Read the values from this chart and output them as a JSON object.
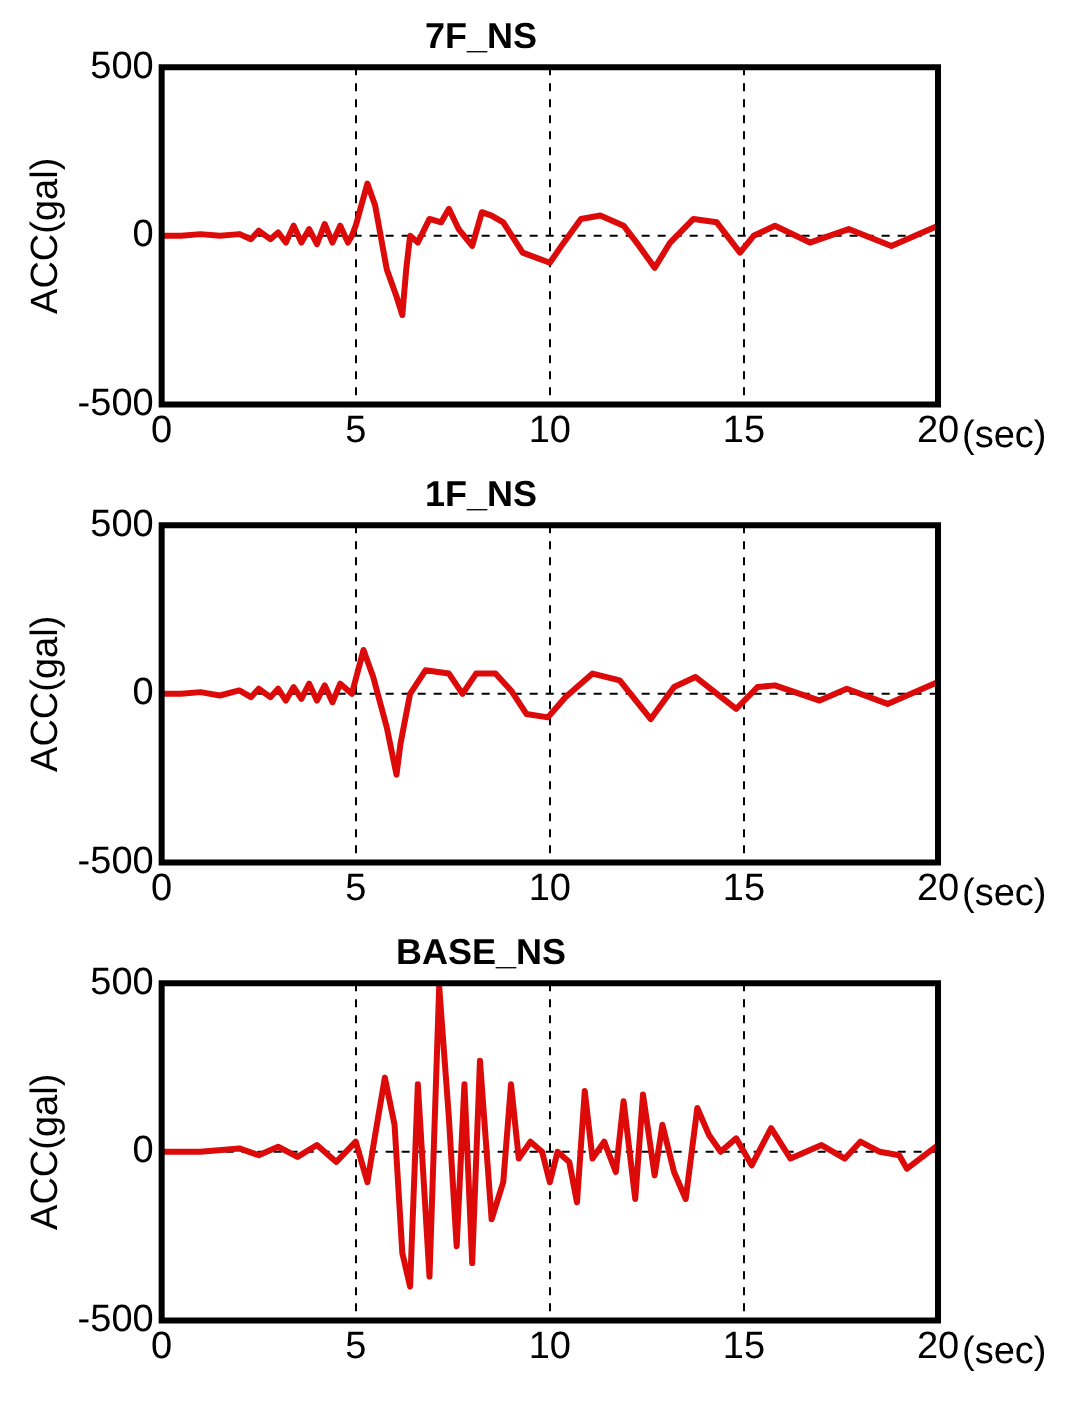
{
  "chart_data": [
    {
      "type": "line",
      "title": "7F_NS",
      "xlabel": "(sec)",
      "ylabel": "ACC(gal)",
      "color": "#dd0a0a",
      "xlim": [
        0,
        20
      ],
      "ylim": [
        -500,
        500
      ],
      "xticks": [
        0,
        5,
        10,
        15,
        20
      ],
      "yticks": [
        -500,
        0,
        500
      ],
      "grid": "x",
      "ref_lines": [
        {
          "axis": "y",
          "value": 0,
          "line_style": "dashed"
        }
      ],
      "x": [
        0,
        0.5,
        1,
        1.5,
        2,
        2.3,
        2.5,
        2.8,
        3,
        3.2,
        3.4,
        3.6,
        3.8,
        4,
        4.2,
        4.4,
        4.6,
        4.8,
        4.9,
        5,
        5.3,
        5.5,
        5.8,
        6.05,
        6.2,
        6.3,
        6.4,
        6.6,
        6.9,
        7.2,
        7.4,
        7.65,
        8,
        8.25,
        8.5,
        8.8,
        9.3,
        10,
        10.3,
        10.8,
        11.3,
        11.9,
        12.3,
        12.7,
        13.1,
        13.7,
        14.3,
        14.9,
        15.25,
        15.8,
        16.7,
        17.7,
        18.8,
        20
      ],
      "values": [
        0,
        0,
        5,
        0,
        5,
        -10,
        15,
        -10,
        10,
        -20,
        30,
        -20,
        20,
        -25,
        35,
        -20,
        30,
        -20,
        0,
        30,
        155,
        90,
        -100,
        -180,
        -235,
        -100,
        0,
        -20,
        50,
        40,
        80,
        20,
        -30,
        70,
        60,
        40,
        -50,
        -80,
        -30,
        50,
        60,
        30,
        -30,
        -95,
        -20,
        50,
        40,
        -50,
        0,
        30,
        -20,
        20,
        -30,
        30
      ]
    },
    {
      "type": "line",
      "title": "1F_NS",
      "xlabel": "(sec)",
      "ylabel": "ACC(gal)",
      "color": "#dd0a0a",
      "xlim": [
        0,
        20
      ],
      "ylim": [
        -500,
        500
      ],
      "xticks": [
        0,
        5,
        10,
        15,
        20
      ],
      "yticks": [
        -500,
        0,
        500
      ],
      "grid": "x",
      "ref_lines": [
        {
          "axis": "y",
          "value": 0,
          "line_style": "dashed"
        }
      ],
      "x": [
        0,
        0.5,
        1,
        1.5,
        2,
        2.3,
        2.5,
        2.8,
        3,
        3.2,
        3.4,
        3.6,
        3.8,
        4,
        4.2,
        4.4,
        4.6,
        4.9,
        5.2,
        5.45,
        5.8,
        6.05,
        6.15,
        6.4,
        6.8,
        7.4,
        7.75,
        8.1,
        8.6,
        9,
        9.4,
        9.95,
        10.4,
        11.1,
        11.8,
        12.6,
        13.2,
        13.75,
        14.8,
        15.35,
        15.8,
        16.95,
        17.65,
        18.7,
        20
      ],
      "values": [
        0,
        0,
        5,
        -5,
        10,
        -10,
        15,
        -10,
        15,
        -20,
        20,
        -15,
        30,
        -20,
        25,
        -25,
        30,
        0,
        130,
        50,
        -100,
        -240,
        -150,
        0,
        70,
        60,
        0,
        60,
        60,
        10,
        -60,
        -70,
        -10,
        60,
        40,
        -75,
        20,
        50,
        -45,
        20,
        25,
        -20,
        15,
        -30,
        35
      ]
    },
    {
      "type": "line",
      "title": "BASE_NS",
      "xlabel": "(sec)",
      "ylabel": "ACC(gal)",
      "color": "#dd0a0a",
      "xlim": [
        0,
        20
      ],
      "ylim": [
        -500,
        500
      ],
      "xticks": [
        0,
        5,
        10,
        15,
        20
      ],
      "yticks": [
        -500,
        0,
        500
      ],
      "grid": "x",
      "ref_lines": [
        {
          "axis": "y",
          "value": 0,
          "line_style": "dashed"
        }
      ],
      "x": [
        0,
        1,
        2,
        2.5,
        3,
        3.5,
        4,
        4.5,
        5,
        5.3,
        5.5,
        5.75,
        6,
        6.2,
        6.4,
        6.6,
        6.9,
        7.15,
        7.4,
        7.6,
        7.8,
        8,
        8.2,
        8.5,
        8.8,
        9,
        9.2,
        9.5,
        9.8,
        10,
        10.2,
        10.5,
        10.7,
        10.9,
        11.1,
        11.4,
        11.7,
        11.9,
        12.2,
        12.4,
        12.7,
        12.9,
        13.2,
        13.5,
        13.8,
        14.1,
        14.4,
        14.8,
        15.2,
        15.7,
        16.2,
        17,
        17.6,
        18,
        18.5,
        19,
        19.2,
        20
      ],
      "values": [
        0,
        0,
        10,
        -10,
        15,
        -15,
        20,
        -30,
        30,
        -90,
        50,
        220,
        80,
        -300,
        -400,
        200,
        -370,
        490,
        100,
        -280,
        200,
        -330,
        270,
        -200,
        -90,
        200,
        -20,
        30,
        0,
        -90,
        0,
        -30,
        -150,
        180,
        -20,
        30,
        -60,
        150,
        -140,
        170,
        -70,
        80,
        -60,
        -140,
        130,
        50,
        0,
        40,
        -40,
        70,
        -20,
        20,
        -20,
        30,
        0,
        -10,
        -50,
        20
      ]
    }
  ]
}
